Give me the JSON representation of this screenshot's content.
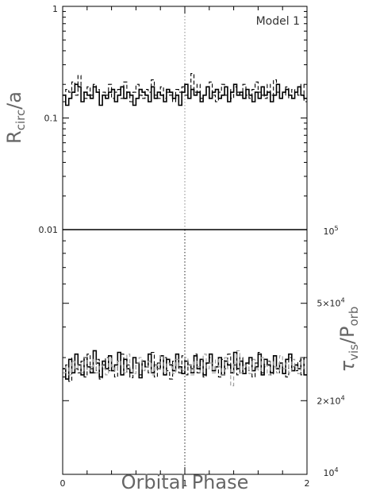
{
  "chart_data": [
    {
      "panel": "top",
      "type": "line",
      "step": true,
      "ylabel": "R_circ/a",
      "yscale": "log",
      "ylim": [
        0.01,
        1
      ],
      "xlim": [
        0,
        2
      ],
      "left_ticks": [
        "1",
        "0.1",
        "0.01"
      ],
      "left_tick_values": [
        1,
        0.1,
        0.01
      ],
      "annotation": "Model 1",
      "reference_line_x": 1,
      "series": [
        {
          "style": "solid",
          "color": "#000000",
          "y": [
            0.16,
            0.13,
            0.15,
            0.17,
            0.2,
            0.19,
            0.14,
            0.17,
            0.16,
            0.15,
            0.19,
            0.17,
            0.13,
            0.16,
            0.15,
            0.17,
            0.18,
            0.14,
            0.16,
            0.19,
            0.15,
            0.17,
            0.16,
            0.13,
            0.15,
            0.18,
            0.17,
            0.16,
            0.14,
            0.19,
            0.15,
            0.17,
            0.16,
            0.14,
            0.18,
            0.17,
            0.15,
            0.16,
            0.13,
            0.17,
            0.2,
            0.15,
            0.18,
            0.16,
            0.17,
            0.14,
            0.16,
            0.19,
            0.15,
            0.17,
            0.18,
            0.15,
            0.16,
            0.19,
            0.14,
            0.17,
            0.2,
            0.16,
            0.17,
            0.15,
            0.18,
            0.16,
            0.14,
            0.17,
            0.15,
            0.19,
            0.16,
            0.17,
            0.14,
            0.16,
            0.2,
            0.15,
            0.17,
            0.18,
            0.16,
            0.15,
            0.17,
            0.19,
            0.16,
            0.15
          ]
        },
        {
          "style": "dashed",
          "color": "#000000",
          "y": [
            0.14,
            0.18,
            0.17,
            0.21,
            0.16,
            0.24,
            0.17,
            0.15,
            0.19,
            0.16,
            0.2,
            0.18,
            0.15,
            0.17,
            0.16,
            0.2,
            0.15,
            0.17,
            0.18,
            0.15,
            0.21,
            0.16,
            0.14,
            0.17,
            0.2,
            0.16,
            0.15,
            0.18,
            0.17,
            0.22,
            0.16,
            0.15,
            0.19,
            0.15,
            0.17,
            0.16,
            0.14,
            0.18,
            0.17,
            0.19,
            0.16,
            0.15,
            0.25,
            0.17,
            0.2,
            0.15,
            0.16,
            0.18,
            0.21,
            0.16,
            0.14,
            0.17,
            0.2,
            0.16,
            0.18,
            0.15,
            0.19,
            0.17,
            0.16,
            0.2,
            0.16,
            0.15,
            0.18,
            0.21,
            0.17,
            0.16,
            0.15,
            0.2,
            0.16,
            0.22,
            0.17,
            0.15,
            0.16,
            0.19,
            0.15,
            0.18,
            0.17,
            0.16,
            0.2,
            0.14
          ]
        }
      ]
    },
    {
      "panel": "bottom",
      "type": "line",
      "step": true,
      "xlabel": "Orbital Phase",
      "ylabel": "τ_vis/P_orb",
      "yscale": "log",
      "ylim": [
        10000,
        100000
      ],
      "xlim": [
        0,
        2
      ],
      "x_ticks": [
        "0",
        "1",
        "2"
      ],
      "x_tick_values": [
        0,
        1,
        2
      ],
      "right_ticks": [
        "10^5",
        "5×10^4",
        "2×10^4",
        "10^4"
      ],
      "right_tick_values": [
        100000,
        50000,
        20000,
        10000
      ],
      "right_tick_parts": [
        {
          "base": "10",
          "exp": "5"
        },
        {
          "base": "5×10",
          "exp": "4"
        },
        {
          "base": "2×10",
          "exp": "4"
        },
        {
          "base": "10",
          "exp": "4"
        }
      ],
      "reference_line_x": 1,
      "series": [
        {
          "style": "solid",
          "color": "#000000",
          "y": [
            27000,
            24500,
            29500,
            26000,
            31000,
            28000,
            25500,
            30000,
            27500,
            26000,
            32000,
            28500,
            25000,
            29000,
            27000,
            30500,
            26500,
            28000,
            31500,
            25500,
            29500,
            27000,
            26000,
            30000,
            28500,
            24800,
            29000,
            27500,
            31000,
            26000,
            28000,
            27000,
            30500,
            25500,
            29500,
            28000,
            26500,
            31000,
            27500,
            25800,
            29000,
            28000,
            26000,
            30500,
            27000,
            29500,
            25500,
            28500,
            31000,
            26500,
            27500,
            30000,
            25500,
            29000,
            28000,
            26000,
            31500,
            27000,
            29000,
            25800,
            28500,
            30000,
            26500,
            27500,
            31000,
            25500,
            29500,
            28000,
            26000,
            30500,
            27000,
            28500,
            25800,
            29500,
            31000,
            26500,
            28000,
            27000,
            30000,
            25500
          ]
        },
        {
          "style": "dashed",
          "color": "#000000",
          "y": [
            25000,
            28000,
            24000,
            30000,
            27000,
            26000,
            29000,
            25000,
            31000,
            27000,
            26000,
            29500,
            24500,
            28000,
            30000,
            26500,
            27500,
            25000,
            29000,
            31000,
            26000,
            28000,
            24800,
            30000,
            27000,
            25500,
            29000,
            27500,
            26000,
            31500,
            25000,
            28500,
            27000,
            30000,
            26500,
            24500,
            29000,
            28000,
            26000,
            30500,
            25500,
            28000,
            27000,
            31000,
            26000,
            29000,
            25000,
            28500,
            30000,
            26500,
            27500,
            25000,
            29500,
            27000,
            31000,
            26000,
            28000,
            25500,
            30000,
            27000,
            26500,
            29000,
            25000,
            28500,
            31500,
            26000,
            27500,
            29000,
            25500,
            30500,
            27000,
            26000,
            28500,
            25000,
            30000,
            27500,
            26500,
            29000,
            25500,
            28000
          ]
        },
        {
          "style": "dashed",
          "color": "#999999",
          "y": [
            26000,
            27500,
            25500,
            29000,
            27000,
            28000,
            26000,
            30000,
            26500,
            27500,
            29500,
            26000,
            28000,
            27000,
            25500,
            30000,
            27500,
            26500,
            29000,
            28000,
            26000,
            31000,
            27000,
            25800,
            28500,
            30000,
            26500,
            27500,
            29000,
            25500,
            28000,
            27000,
            30500,
            26000,
            28500,
            27500,
            25800,
            29500,
            27000,
            26500,
            30000,
            28000,
            25500,
            29000,
            27500,
            26000,
            31000,
            27000,
            28500,
            26000,
            29500,
            27500,
            25500,
            30000,
            27000,
            23000,
            28500,
            32000,
            26000,
            28000,
            27500,
            25800,
            29500,
            27000,
            26500,
            30000,
            28000,
            25500,
            29000,
            27500,
            26000,
            30500,
            27000,
            28500,
            26000,
            29500,
            27500,
            25800,
            30000,
            27000
          ]
        }
      ]
    }
  ],
  "labels": {
    "top_ylabel_main": "R",
    "top_ylabel_sub": "circ",
    "top_ylabel_tail": "/a",
    "bottom_ylabel_tau": "τ",
    "bottom_ylabel_sub1": "vis",
    "bottom_ylabel_mid": "/P",
    "bottom_ylabel_sub2": "orb",
    "xlabel": "Orbital Phase",
    "annotation": "Model 1"
  }
}
